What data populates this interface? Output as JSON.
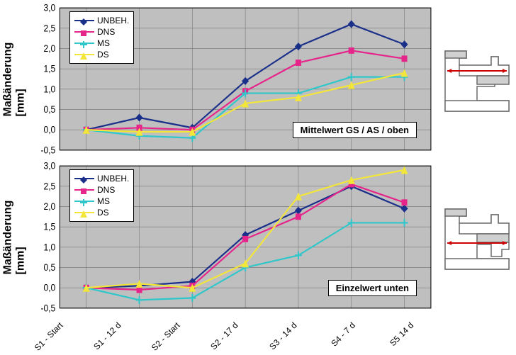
{
  "x_categories": [
    "S1 - Start",
    "S1 - 12 d",
    "S2 - Start",
    "S2 - 17 d",
    "S3 - 14 d",
    "S4 - 7 d",
    "S5 14 d"
  ],
  "ylabel_line1": "Maßänderung",
  "ylabel_line2": "[mm]",
  "charts": [
    {
      "ylim": [
        -0.5,
        3.0
      ],
      "ytick_step": 0.5,
      "plot_bg": "#bfbfbf",
      "grid_color": "#7a7a7a",
      "axis_color": "#000000",
      "title_box": "Mittelwert GS / AS / oben",
      "series": [
        {
          "name": "UNBEH.",
          "color": "#1a2f8a",
          "marker": "diamond",
          "values": [
            0.0,
            0.3,
            0.05,
            1.2,
            2.05,
            2.6,
            2.1
          ]
        },
        {
          "name": "DNS",
          "color": "#e6258b",
          "marker": "square",
          "values": [
            0.0,
            0.05,
            0.0,
            0.95,
            1.65,
            1.95,
            1.75
          ]
        },
        {
          "name": "MS",
          "color": "#2fc7c9",
          "marker": "cross",
          "values": [
            0.0,
            -0.15,
            -0.2,
            0.9,
            0.9,
            1.3,
            1.3
          ]
        },
        {
          "name": "DS",
          "color": "#f3e63a",
          "marker": "triangle",
          "values": [
            0.0,
            -0.05,
            -0.05,
            0.65,
            0.8,
            1.1,
            1.4
          ]
        }
      ]
    },
    {
      "ylim": [
        -0.5,
        3.0
      ],
      "ytick_step": 0.5,
      "plot_bg": "#bfbfbf",
      "grid_color": "#7a7a7a",
      "axis_color": "#000000",
      "title_box": "Einzelwert unten",
      "series": [
        {
          "name": "UNBEH.",
          "color": "#1a2f8a",
          "marker": "diamond",
          "values": [
            0.0,
            0.05,
            0.15,
            1.3,
            1.9,
            2.5,
            1.95
          ]
        },
        {
          "name": "DNS",
          "color": "#e6258b",
          "marker": "square",
          "values": [
            0.0,
            -0.05,
            0.05,
            1.2,
            1.75,
            2.55,
            2.1
          ]
        },
        {
          "name": "MS",
          "color": "#2fc7c9",
          "marker": "cross",
          "values": [
            0.0,
            -0.3,
            -0.25,
            0.5,
            0.8,
            1.6,
            1.6
          ]
        },
        {
          "name": "DS",
          "color": "#f3e63a",
          "marker": "triangle",
          "values": [
            0.0,
            0.1,
            0.0,
            0.6,
            2.25,
            2.65,
            2.9
          ]
        }
      ]
    }
  ],
  "legend_order": [
    "UNBEH.",
    "DNS",
    "MS",
    "DS"
  ],
  "thumbnails": {
    "stroke": "#6b6b6b",
    "fill": "#d0d0d0",
    "arrow": "#cc0000"
  }
}
